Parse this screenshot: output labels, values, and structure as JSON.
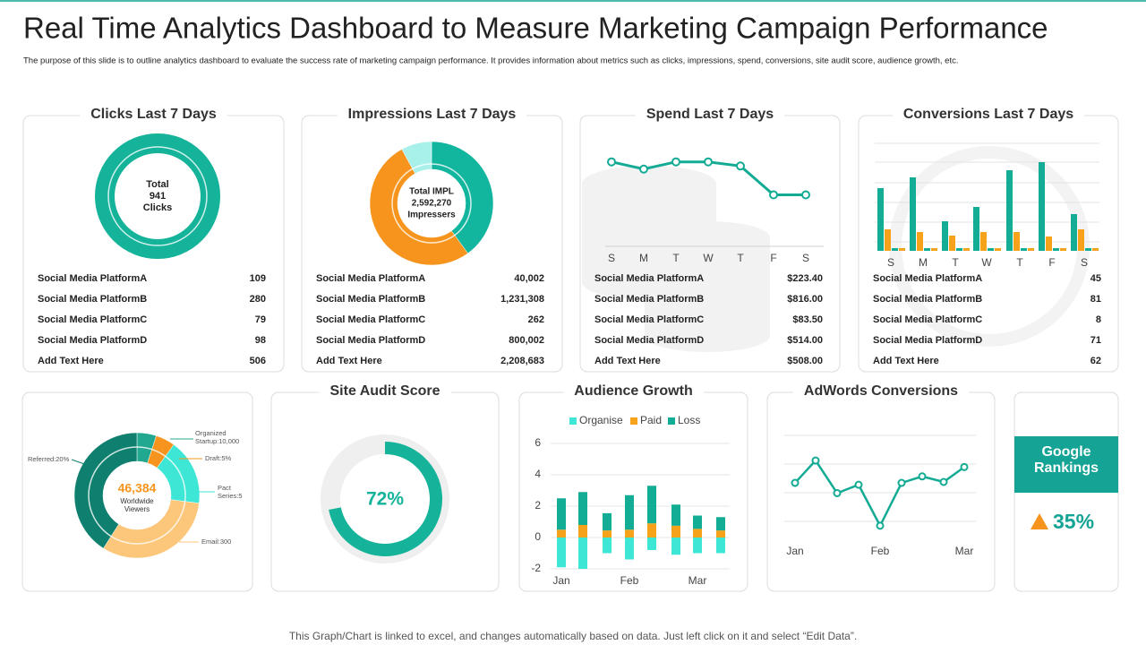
{
  "title": "Real Time Analytics Dashboard to Measure Marketing Campaign Performance",
  "subtitle": "The purpose of this slide is to outline analytics dashboard to evaluate the success rate of marketing campaign performance. It provides information about metrics such as clicks, impressions, spend, conversions, site audit score, audience growth, etc.",
  "chart_data": [
    {
      "type": "donut",
      "title": "Clicks Last 7 Days",
      "center_label": [
        "Total",
        "941",
        "Clicks"
      ],
      "color": "#14b39a",
      "table": {
        "rows": [
          [
            "Social Media PlatformA",
            "109"
          ],
          [
            "Social Media PlatformB",
            "280"
          ],
          [
            "Social Media PlatformC",
            "79"
          ],
          [
            "Social Media PlatformD",
            "98"
          ],
          [
            "Add Text Here",
            "506"
          ]
        ]
      }
    },
    {
      "type": "donut",
      "title": "Impressions Last 7 Days",
      "center_label": [
        "Total IMPL",
        "2,592,270",
        "Impressers"
      ],
      "values": [
        40,
        52,
        8
      ],
      "colors": [
        "#12b59e",
        "#f7941d",
        "#a8f0ea"
      ],
      "table": {
        "rows": [
          [
            "Social Media PlatformA",
            "40,002"
          ],
          [
            "Social Media PlatformB",
            "1,231,308"
          ],
          [
            "Social Media PlatformC",
            "262"
          ],
          [
            "Social Media PlatformD",
            "800,002"
          ],
          [
            "Add Text Here",
            "2,208,683"
          ]
        ]
      }
    },
    {
      "type": "line",
      "title": "Spend Last 7 Days",
      "categories": [
        "S",
        "M",
        "T",
        "W",
        "T",
        "F",
        "S"
      ],
      "values": [
        82,
        75,
        82,
        82,
        78,
        50,
        50
      ],
      "ylim": [
        0,
        100
      ],
      "color": "#14ab95",
      "table": {
        "rows": [
          [
            "Social Media PlatformA",
            "$223.40"
          ],
          [
            "Social Media PlatformB",
            "$816.00"
          ],
          [
            "Social Media PlatformC",
            "$83.50"
          ],
          [
            "Social Media PlatformD",
            "$514.00"
          ],
          [
            "Add Text Here",
            "$508.00"
          ]
        ]
      }
    },
    {
      "type": "bar",
      "title": "Conversions Last 7 Days",
      "categories": [
        "S",
        "M",
        "T",
        "W",
        "T",
        "F",
        "S"
      ],
      "series": [
        {
          "color": "#13ac94",
          "values": [
            70,
            82,
            33,
            49,
            90,
            99,
            41
          ]
        },
        {
          "color": "#f7a21b",
          "values": [
            24,
            21,
            17,
            21,
            21,
            16,
            24
          ]
        },
        {
          "color": "#13ac94",
          "values": [
            3,
            3,
            3,
            3,
            3,
            3,
            3
          ]
        },
        {
          "color": "#f7a21b",
          "values": [
            3,
            3,
            3,
            3,
            3,
            3,
            3
          ]
        }
      ],
      "ylim": [
        0,
        120
      ],
      "table": {
        "rows": [
          [
            "Social Media PlatformA",
            "45"
          ],
          [
            "Social Media PlatformB",
            "81"
          ],
          [
            "Social Media PlatformC",
            "8"
          ],
          [
            "Social Media PlatformD",
            "71"
          ],
          [
            "Add Text Here",
            "62"
          ]
        ]
      }
    },
    {
      "type": "donut",
      "center_label": [
        "46,384",
        "Worldwide",
        "Viewers"
      ],
      "values": [
        5,
        5,
        17,
        32,
        41
      ],
      "colors": [
        "#22a890",
        "#f7941d",
        "#3ee6d6",
        "#fcc77a",
        "#0f8070"
      ],
      "segment_labels": [
        [
          "Organized",
          "Startup:10,000"
        ],
        [
          "Draft:5%"
        ],
        [
          "Pact",
          "Series:5"
        ],
        [
          "Email:300"
        ],
        [
          "Referred:20%"
        ]
      ]
    },
    {
      "type": "gauge",
      "title": "Site Audit Score",
      "values": [
        72
      ],
      "value_labels": [
        "72%"
      ],
      "range": [
        0,
        100
      ],
      "color": "#14b39a"
    },
    {
      "type": "stacked_bar",
      "title": "Audience Growth",
      "categories": [
        "Jan",
        null,
        null,
        "Feb",
        null,
        null,
        "Mar",
        null
      ],
      "series": [
        {
          "name": "Organise",
          "color": "#3ee6d6",
          "values": [
            -1.9,
            -2.0,
            -1.0,
            -1.4,
            -0.8,
            -1.1,
            -1.0,
            -1.0
          ]
        },
        {
          "name": "Paid",
          "color": "#f7a21b",
          "values": [
            0.5,
            0.8,
            0.45,
            0.5,
            0.9,
            0.75,
            0.55,
            0.45
          ]
        },
        {
          "name": "Loss",
          "color": "#13ac94",
          "values": [
            2.0,
            2.1,
            1.1,
            2.2,
            2.4,
            1.35,
            0.85,
            0.85
          ]
        }
      ],
      "ylim": [
        -2,
        6
      ],
      "yticks": [
        -2,
        0,
        2,
        4,
        6
      ],
      "grid": true,
      "legend": "top"
    },
    {
      "type": "line",
      "title": "AdWords Conversions",
      "categories": [
        "Jan",
        null,
        null,
        null,
        "Feb",
        null,
        null,
        null,
        "Mar"
      ],
      "values": [
        49,
        73,
        38,
        47,
        3,
        49,
        56,
        50,
        66
      ],
      "ylim": [
        0,
        100
      ],
      "color": "#14ab95"
    }
  ],
  "kpi": {
    "title": "Google Rankings",
    "value_label": "35%"
  },
  "footer": "This Graph/Chart is linked to excel, and changes automatically based on data. Just left click on it and select “Edit Data”."
}
